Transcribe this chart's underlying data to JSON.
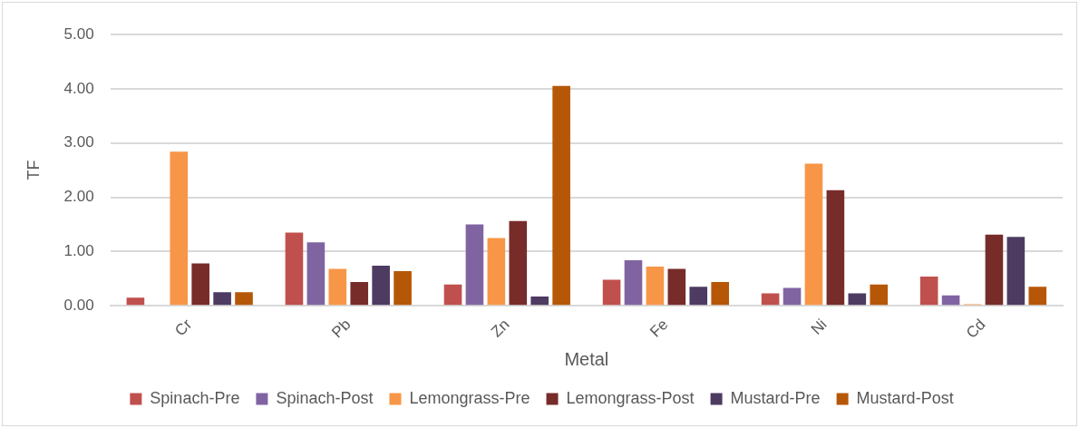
{
  "chart_data": {
    "type": "bar",
    "xlabel": "Metal",
    "ylabel": "TF",
    "categories": [
      "Cr",
      "Pb",
      "Zn",
      "Fe",
      "Ni",
      "Cd"
    ],
    "series": [
      {
        "name": "Spinach-Pre",
        "color": "#c0504d",
        "values": [
          0.15,
          1.35,
          0.39,
          0.48,
          0.23,
          0.54
        ]
      },
      {
        "name": "Spinach-Post",
        "color": "#8064a2",
        "values": [
          0,
          1.17,
          1.5,
          0.84,
          0.33,
          0.19
        ]
      },
      {
        "name": "Lemongrass-Pre",
        "color": "#f79646",
        "values": [
          2.84,
          0.68,
          1.25,
          0.72,
          2.62,
          0.03
        ]
      },
      {
        "name": "Lemongrass-Post",
        "color": "#772c2a",
        "values": [
          0.78,
          0.44,
          1.56,
          0.68,
          2.13,
          1.31
        ]
      },
      {
        "name": "Mustard-Pre",
        "color": "#4d3b62",
        "values": [
          0.25,
          0.74,
          0.17,
          0.35,
          0.23,
          1.27
        ]
      },
      {
        "name": "Mustard-Post",
        "color": "#b65708",
        "values": [
          0.25,
          0.64,
          4.05,
          0.44,
          0.39,
          0.35
        ]
      }
    ],
    "ylim": [
      0,
      5
    ],
    "yticks": [
      {
        "value": 0,
        "label": "0.00"
      },
      {
        "value": 1,
        "label": "1.00"
      },
      {
        "value": 2,
        "label": "2.00"
      },
      {
        "value": 3,
        "label": "3.00"
      },
      {
        "value": 4,
        "label": "4.00"
      },
      {
        "value": 5,
        "label": "5.00"
      }
    ],
    "grid": "y",
    "legend": "bottom"
  }
}
